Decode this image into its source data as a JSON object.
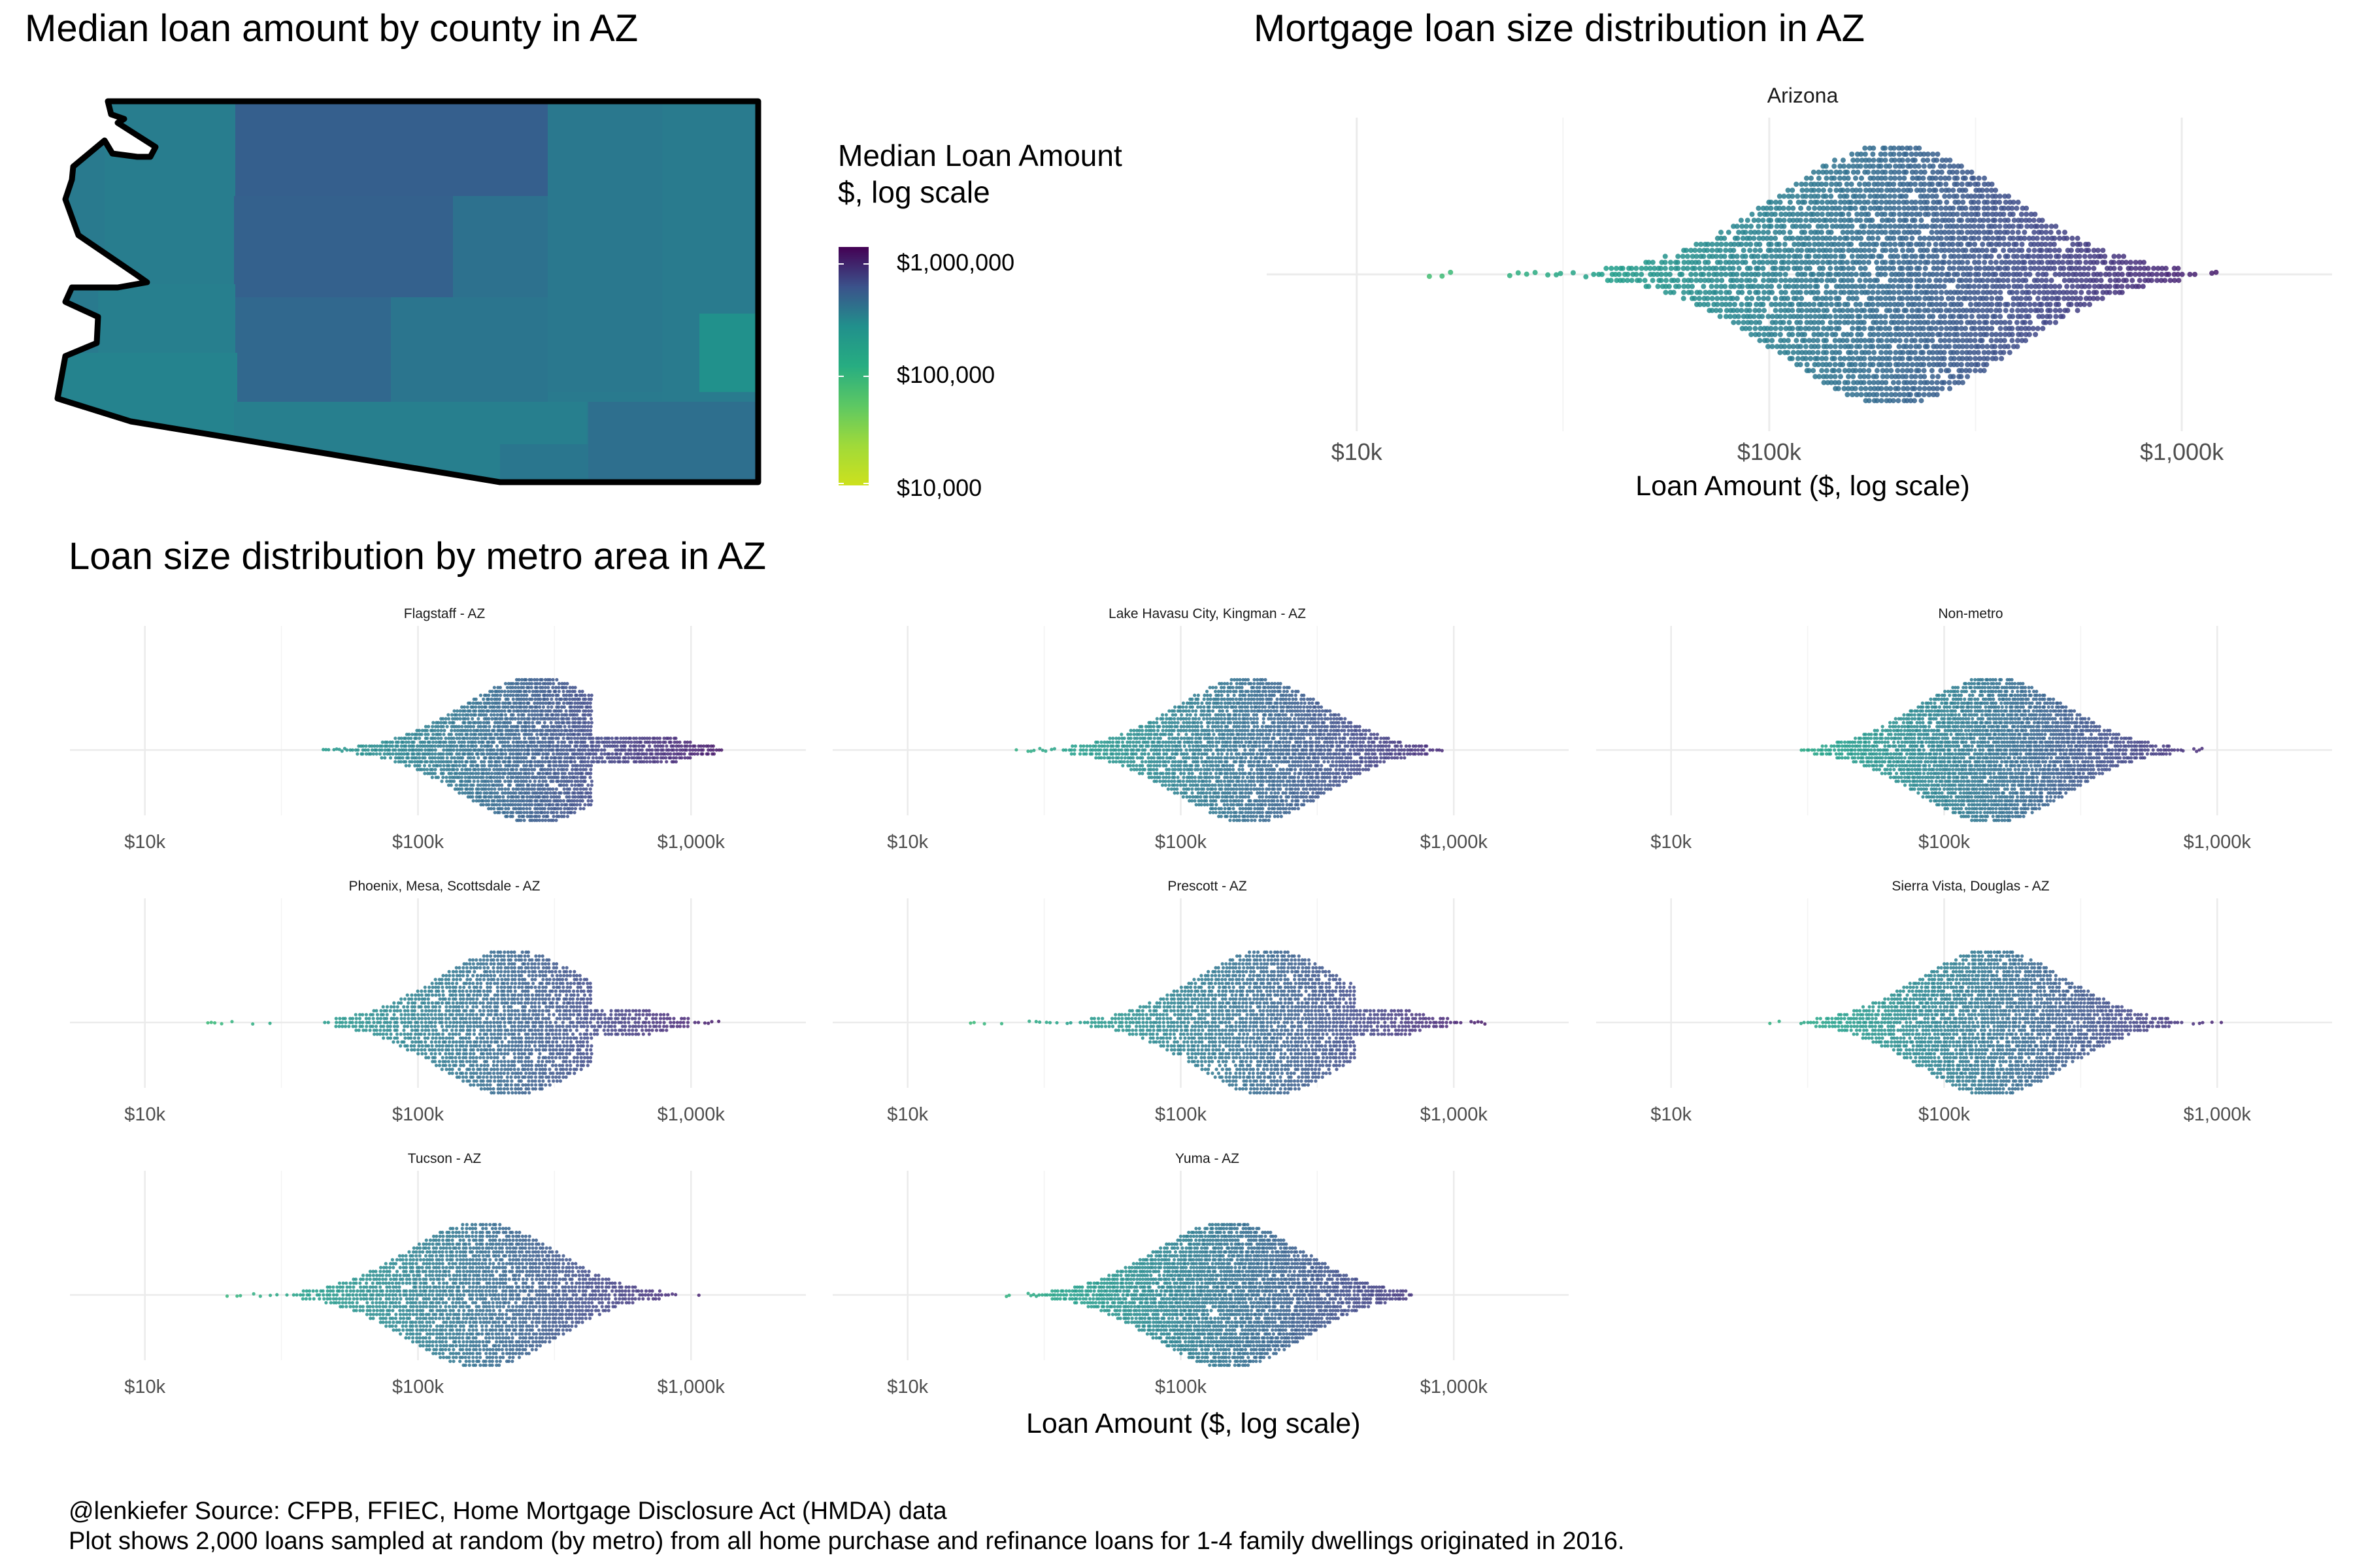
{
  "map": {
    "title": "Median loan amount by county in AZ",
    "legend": {
      "title_line1": "Median Loan Amount",
      "title_line2": "$, log scale",
      "ticks": [
        "$1,000,000",
        "$100,000",
        "$10,000"
      ],
      "colors": [
        "#440154",
        "#3b528b",
        "#21908c",
        "#27ad81",
        "#5dc863",
        "#a0da39",
        "#cde11d"
      ]
    }
  },
  "state_chart": {
    "title": "Mortgage loan size distribution in AZ",
    "strip": "Arizona",
    "xlabel": "Loan Amount ($, log scale)"
  },
  "metro_section": {
    "title": "Loan size distribution by metro area in AZ",
    "xlabel": "Loan Amount ($, log scale)"
  },
  "caption": {
    "line1": "@lenkiefer Source: CFPB, FFIEC, Home Mortgage Disclosure Act (HMDA) data",
    "line2": "Plot shows 2,000 loans sampled at random (by metro) from all home purchase and refinance loans for 1-4 family dwellings originated in 2016."
  },
  "chart_data": [
    {
      "type": "scatter",
      "subtype": "beeswarm",
      "title": "Mortgage loan size distribution in AZ",
      "panel": "Arizona",
      "xlabel": "Loan Amount ($, log scale)",
      "x_scale": "log10",
      "xlim": [
        7000,
        2000000
      ],
      "x_ticks": [
        10000,
        100000,
        1000000
      ],
      "x_tick_labels": [
        "$10k",
        "$100k",
        "$1,000k"
      ],
      "grid": true,
      "distribution": {
        "min": 15000,
        "p10": 90000,
        "median": 200000,
        "p90": 420000,
        "max": 1300000
      },
      "color_scale": "viridis (log loan amount)"
    },
    {
      "type": "scatter",
      "subtype": "beeswarm-facets",
      "title": "Loan size distribution by metro area in AZ",
      "xlabel": "Loan Amount ($, log scale)",
      "x_scale": "log10",
      "xlim": [
        7000,
        2000000
      ],
      "x_ticks": [
        10000,
        100000,
        1000000
      ],
      "x_tick_labels": [
        "$10k",
        "$100k",
        "$1,000k"
      ],
      "grid": true,
      "panels": [
        {
          "name": "Flagstaff - AZ",
          "min": 45000,
          "median": 270000,
          "max": 1300000,
          "cap": 424000
        },
        {
          "name": "Lake Havasu City, Kingman - AZ",
          "min": 25000,
          "median": 180000,
          "max": 1000000,
          "cap": null
        },
        {
          "name": "Non-metro",
          "min": 30000,
          "median": 150000,
          "max": 900000,
          "cap": 424000
        },
        {
          "name": "Phoenix, Mesa, Scottsdale - AZ",
          "min": 17000,
          "median": 220000,
          "max": 1300000,
          "cap": 424000
        },
        {
          "name": "Prescott - AZ",
          "min": 17000,
          "median": 210000,
          "max": 1300000,
          "cap": 424000
        },
        {
          "name": "Sierra Vista, Douglas - AZ",
          "min": 23000,
          "median": 150000,
          "max": 1150000,
          "cap": null
        },
        {
          "name": "Tucson - AZ",
          "min": 20000,
          "median": 170000,
          "max": 1300000,
          "cap": null
        },
        {
          "name": "Yuma - AZ",
          "min": 23000,
          "median": 150000,
          "max": 700000,
          "cap": null
        }
      ]
    }
  ]
}
